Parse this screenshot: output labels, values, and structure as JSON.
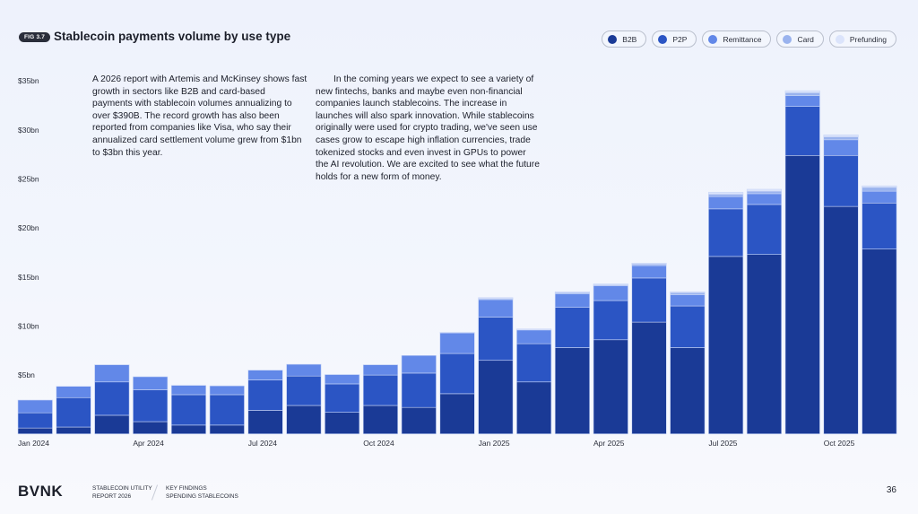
{
  "header": {
    "fig_label": "FIG 3.7",
    "title": "Stablecoin payments volume by use type"
  },
  "legend": [
    {
      "label": "B2B",
      "color": "#1a3a96"
    },
    {
      "label": "P2P",
      "color": "#2b55c4"
    },
    {
      "label": "Remittance",
      "color": "#6288e8"
    },
    {
      "label": "Card",
      "color": "#9ab3ee"
    },
    {
      "label": "Prefunding",
      "color": "#dbe4fb"
    }
  ],
  "text": {
    "left": "A 2026 report with Artemis and McKinsey shows fast growth in sectors like B2B and card-based payments with stablecoin volumes annualizing to over $390B. The record growth has also been reported from companies like Visa, who say their annualized card settlement volume grew from $1bn to $3bn this year.",
    "right": "In the coming years we expect to see a variety of new fintechs, banks and maybe even non-financial companies launch stablecoins. The increase in launches will also spark innovation. While stablecoins originally were used for crypto trading, we've seen use cases grow to escape high inflation currencies, trade tokenized stocks and even invest in GPUs to power the AI revolution. We are excited to see what the future holds for a new form of money."
  },
  "chart_data": {
    "type": "bar",
    "stacked": true,
    "title": "Stablecoin payments volume by use type",
    "xlabel": "",
    "ylabel": "",
    "ylim": [
      0,
      35
    ],
    "yticks": [
      "$5bn",
      "$10bn",
      "$15bn",
      "$20bn",
      "$25bn",
      "$30bn",
      "$35bn"
    ],
    "ytick_values": [
      5,
      10,
      15,
      20,
      25,
      30,
      35
    ],
    "xtick_labels": [
      {
        "index": 0,
        "label": "Jan 2024"
      },
      {
        "index": 3,
        "label": "Apr 2024"
      },
      {
        "index": 6,
        "label": "Jul 2024"
      },
      {
        "index": 9,
        "label": "Oct 2024"
      },
      {
        "index": 12,
        "label": "Jan 2025"
      },
      {
        "index": 15,
        "label": "Apr 2025"
      },
      {
        "index": 18,
        "label": "Jul 2025"
      },
      {
        "index": 21,
        "label": "Oct 2025"
      }
    ],
    "categories": [
      "Jan 2024",
      "Feb 2024",
      "Mar 2024",
      "Apr 2024",
      "May 2024",
      "Jun 2024",
      "Jul 2024",
      "Aug 2024",
      "Sep 2024",
      "Oct 2024",
      "Nov 2024",
      "Dec 2024",
      "Jan 2025",
      "Feb 2025",
      "Mar 2025",
      "Apr 2025",
      "May 2025",
      "Jun 2025",
      "Jul 2025",
      "Aug 2025",
      "Sep 2025",
      "Oct 2025",
      "Nov 2025"
    ],
    "series": [
      {
        "name": "B2B",
        "color": "#1a3a96",
        "values": [
          0.6,
          0.7,
          1.9,
          1.25,
          0.9,
          0.9,
          2.4,
          2.9,
          2.2,
          2.9,
          2.7,
          4.1,
          7.5,
          5.3,
          8.8,
          9.6,
          11.4,
          8.8,
          18.1,
          18.3,
          28.4,
          23.2,
          18.85
        ]
      },
      {
        "name": "P2P",
        "color": "#2b55c4",
        "values": [
          1.55,
          3.0,
          3.4,
          3.25,
          3.1,
          3.1,
          3.1,
          3.0,
          2.9,
          3.1,
          3.5,
          4.1,
          4.4,
          3.9,
          4.1,
          4.0,
          4.5,
          4.25,
          4.85,
          5.1,
          5.0,
          5.2,
          4.7
        ]
      },
      {
        "name": "Remittance",
        "color": "#6288e8",
        "values": [
          1.3,
          1.15,
          1.75,
          1.33,
          0.95,
          0.9,
          1.0,
          1.2,
          0.95,
          1.05,
          1.8,
          2.1,
          1.8,
          1.4,
          1.4,
          1.5,
          1.27,
          1.15,
          1.25,
          1.1,
          1.1,
          1.6,
          1.2
        ]
      },
      {
        "name": "Card",
        "color": "#9ab3ee",
        "values": [
          0,
          0,
          0,
          0,
          0,
          0,
          0,
          0,
          0,
          0,
          0,
          0,
          0.1,
          0,
          0.1,
          0.1,
          0.15,
          0.2,
          0.25,
          0.25,
          0.3,
          0.3,
          0.4
        ]
      },
      {
        "name": "Prefunding",
        "color": "#dbe4fb",
        "values": [
          0,
          0,
          0,
          0,
          0,
          0,
          0,
          0,
          0,
          0,
          0,
          0.05,
          0.1,
          0.1,
          0.1,
          0.1,
          0.1,
          0.1,
          0.2,
          0.2,
          0.2,
          0.2,
          0.15
        ]
      }
    ],
    "grid": false,
    "legend_position": "top-right"
  },
  "footer": {
    "logo": "BVNK",
    "report_line1": "Stablecoin utility",
    "report_line2": "Report 2026",
    "section_line1": "Key findings",
    "section_line2": "Spending stablecoins",
    "page_number": "36"
  }
}
